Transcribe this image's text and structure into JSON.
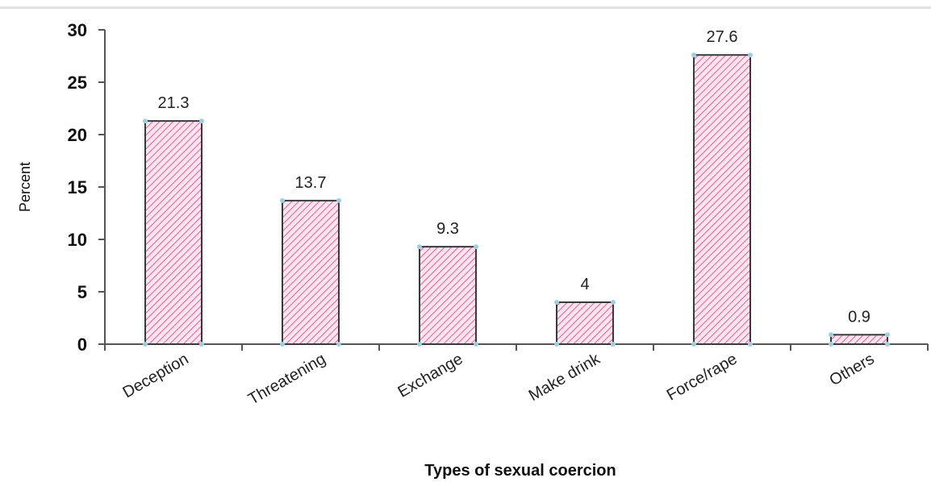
{
  "chart_data": {
    "type": "bar",
    "categories": [
      "Deception",
      "Threatening",
      "Exchange",
      "Make drink",
      "Force/rape",
      "Others"
    ],
    "values": [
      21.3,
      13.7,
      9.3,
      4,
      27.6,
      0.9
    ],
    "data_labels": [
      "21.3",
      "13.7",
      "9.3",
      "4",
      "27.6",
      "0.9"
    ],
    "title": "",
    "xlabel": "Types of sexual coercion",
    "ylabel": "Percent",
    "ylim": [
      0,
      30
    ],
    "yticks": [
      0,
      5,
      10,
      15,
      20,
      25,
      30
    ],
    "grid": false,
    "legend": "none",
    "colors": {
      "bar_fill": "#fce4ee",
      "bar_hatch": "#e0609a",
      "bar_stroke": "#3a3a3a",
      "marker": "#9ecfe0",
      "axis": "#555555"
    }
  }
}
